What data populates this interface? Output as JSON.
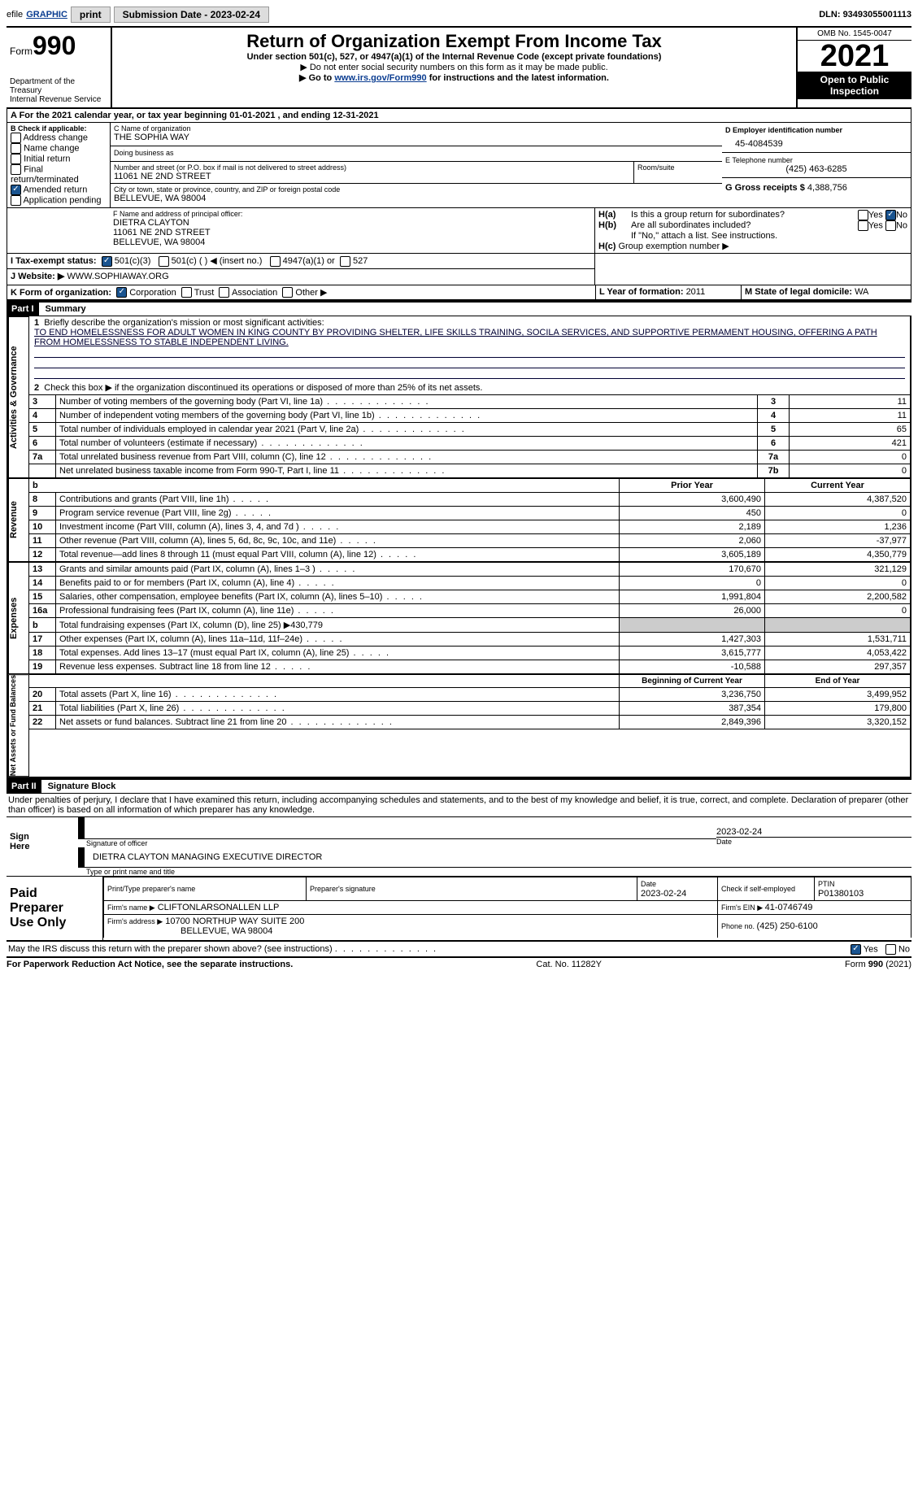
{
  "top": {
    "efile": "efile",
    "graphic": "GRAPHIC",
    "print": "print",
    "subdate_lbl": "Submission Date - ",
    "subdate": "2023-02-24",
    "dln_lbl": "DLN: ",
    "dln": "93493055001113"
  },
  "head": {
    "form": "Form",
    "num": "990",
    "dept": "Department of the Treasury\nInternal Revenue Service",
    "title": "Return of Organization Exempt From Income Tax",
    "sub": "Under section 501(c), 527, or 4947(a)(1) of the Internal Revenue Code (except private foundations)",
    "line2": "▶ Do not enter social security numbers on this form as it may be made public.",
    "line3a": "▶ Go to ",
    "line3_link": "www.irs.gov/Form990",
    "line3b": " for instructions and the latest information.",
    "omb": "OMB No. 1545-0047",
    "year": "2021",
    "inspect1": "Open to Public",
    "inspect2": "Inspection"
  },
  "A": {
    "text_a": "A For the 2021 calendar year, or tax year beginning ",
    "begin": "01-01-2021",
    "text_b": "   , and ending ",
    "end": "12-31-2021"
  },
  "B": {
    "lbl": "B Check if applicable:",
    "addr": "Address change",
    "name": "Name change",
    "init": "Initial return",
    "final": "Final return/terminated",
    "amend": "Amended return",
    "app": "Application pending",
    "checked": {
      "addr": false,
      "name": false,
      "init": false,
      "final": false,
      "amend": true,
      "app": false
    }
  },
  "C": {
    "name_lbl": "C Name of organization",
    "name": "THE SOPHIA WAY",
    "dba_lbl": "Doing business as",
    "dba": "",
    "street_lbl": "Number and street (or P.O. box if mail is not delivered to street address)",
    "room_lbl": "Room/suite",
    "street": "11061 NE 2ND STREET",
    "city_lbl": "City or town, state or province, country, and ZIP or foreign postal code",
    "city": "BELLEVUE, WA  98004"
  },
  "D": {
    "lbl": "D Employer identification number",
    "val": "45-4084539"
  },
  "E": {
    "lbl": "E Telephone number",
    "val": "(425) 463-6285"
  },
  "G": {
    "lbl": "G Gross receipts $ ",
    "val": "4,388,756"
  },
  "F": {
    "lbl": "F  Name and address of principal officer:",
    "name": "DIETRA CLAYTON",
    "street": "11061 NE 2ND STREET",
    "city": "BELLEVUE, WA  98004"
  },
  "H": {
    "a": "Is this a group return for subordinates?",
    "b": "Are all subordinates included?",
    "note": "If \"No,\" attach a list. See instructions.",
    "c": "Group exemption number ▶",
    "yes": "Yes",
    "no": "No",
    "ha": "H(a)",
    "hb": "H(b)",
    "hc": "H(c)"
  },
  "I": {
    "lbl": "I   Tax-exempt status:",
    "c3": "501(c)(3)",
    "c": "501(c) (  ) ◀ (insert no.)",
    "a1": "4947(a)(1) or",
    "s527": "527"
  },
  "J": {
    "lbl": "J   Website: ▶",
    "val": "  WWW.SOPHIAWAY.ORG"
  },
  "K": {
    "lbl": "K Form of organization:",
    "corp": "Corporation",
    "trust": "Trust",
    "assoc": "Association",
    "other": "Other ▶"
  },
  "L": {
    "lbl": "L Year of formation: ",
    "val": "2011"
  },
  "M": {
    "lbl": "M State of legal domicile: ",
    "val": "WA"
  },
  "part1": {
    "bar": "Part I",
    "title": "Summary"
  },
  "summary": {
    "l1a": "Briefly describe the organization's mission or most significant activities:",
    "l1b": "TO END HOMELESSNESS FOR ADULT WOMEN IN KING COUNTY BY PROVIDING SHELTER, LIFE SKILLS TRAINING, SOCILA SERVICES, AND SUPPORTIVE PERMAMENT HOUSING, OFFERING A PATH FROM HOMELESSNESS TO STABLE INDEPENDENT LIVING.",
    "l2": "Check this box ▶        if the organization discontinued its operations or disposed of more than 25% of its net assets.",
    "rows": [
      {
        "n": "3",
        "t": "Number of voting members of the governing body (Part VI, line 1a)",
        "b": "3",
        "v": "11"
      },
      {
        "n": "4",
        "t": "Number of independent voting members of the governing body (Part VI, line 1b)",
        "b": "4",
        "v": "11"
      },
      {
        "n": "5",
        "t": "Total number of individuals employed in calendar year 2021 (Part V, line 2a)",
        "b": "5",
        "v": "65"
      },
      {
        "n": "6",
        "t": "Total number of volunteers (estimate if necessary)",
        "b": "6",
        "v": "421"
      },
      {
        "n": "7a",
        "t": "Total unrelated business revenue from Part VIII, column (C), line 12",
        "b": "7a",
        "v": "0"
      },
      {
        "n": "",
        "t": "Net unrelated business taxable income from Form 990-T, Part I, line 11",
        "b": "7b",
        "v": "0"
      }
    ],
    "col_prior": "Prior Year",
    "col_curr": "Current Year",
    "rev": [
      {
        "n": "8",
        "t": "Contributions and grants (Part VIII, line 1h)",
        "p": "3,600,490",
        "c": "4,387,520"
      },
      {
        "n": "9",
        "t": "Program service revenue (Part VIII, line 2g)",
        "p": "450",
        "c": "0"
      },
      {
        "n": "10",
        "t": "Investment income (Part VIII, column (A), lines 3, 4, and 7d )",
        "p": "2,189",
        "c": "1,236"
      },
      {
        "n": "11",
        "t": "Other revenue (Part VIII, column (A), lines 5, 6d, 8c, 9c, 10c, and 11e)",
        "p": "2,060",
        "c": "-37,977"
      },
      {
        "n": "12",
        "t": "Total revenue—add lines 8 through 11 (must equal Part VIII, column (A), line 12)",
        "p": "3,605,189",
        "c": "4,350,779"
      }
    ],
    "exp": [
      {
        "n": "13",
        "t": "Grants and similar amounts paid (Part IX, column (A), lines 1–3 )",
        "p": "170,670",
        "c": "321,129"
      },
      {
        "n": "14",
        "t": "Benefits paid to or for members (Part IX, column (A), line 4)",
        "p": "0",
        "c": "0"
      },
      {
        "n": "15",
        "t": "Salaries, other compensation, employee benefits (Part IX, column (A), lines 5–10)",
        "p": "1,991,804",
        "c": "2,200,582"
      },
      {
        "n": "16a",
        "t": "Professional fundraising fees (Part IX, column (A), line 11e)",
        "p": "26,000",
        "c": "0"
      },
      {
        "n": "b",
        "t": "Total fundraising expenses (Part IX, column (D), line 25) ▶430,779",
        "p": "",
        "c": "",
        "shaded": true
      },
      {
        "n": "17",
        "t": "Other expenses (Part IX, column (A), lines 11a–11d, 11f–24e)",
        "p": "1,427,303",
        "c": "1,531,711"
      },
      {
        "n": "18",
        "t": "Total expenses. Add lines 13–17 (must equal Part IX, column (A), line 25)",
        "p": "3,615,777",
        "c": "4,053,422"
      },
      {
        "n": "19",
        "t": "Revenue less expenses. Subtract line 18 from line 12",
        "p": "-10,588",
        "c": "297,357"
      }
    ],
    "col_beg": "Beginning of Current Year",
    "col_end": "End of Year",
    "net": [
      {
        "n": "20",
        "t": "Total assets (Part X, line 16)",
        "p": "3,236,750",
        "c": "3,499,952"
      },
      {
        "n": "21",
        "t": "Total liabilities (Part X, line 26)",
        "p": "387,354",
        "c": "179,800"
      },
      {
        "n": "22",
        "t": "Net assets or fund balances. Subtract line 21 from line 20",
        "p": "2,849,396",
        "c": "3,320,152"
      }
    ],
    "tab_act": "Activities & Governance",
    "tab_rev": "Revenue",
    "tab_exp": "Expenses",
    "tab_net": "Net Assets or Fund Balances"
  },
  "part2": {
    "bar": "Part II",
    "title": "Signature Block"
  },
  "sig": {
    "decl": "Under penalties of perjury, I declare that I have examined this return, including accompanying schedules and statements, and to the best of my knowledge and belief, it is true, correct, and complete. Declaration of preparer (other than officer) is based on all information of which preparer has any knowledge.",
    "sign_here": "Sign Here",
    "sig_officer": "Signature of officer",
    "date": "Date",
    "date_val": "2023-02-24",
    "name_title": "DIETRA CLAYTON  MANAGING EXECUTIVE DIRECTOR",
    "type_name": "Type or print name and title",
    "paid": "Paid Preparer Use Only",
    "print_prep": "Print/Type preparer's name",
    "prep_sig": "Preparer's signature",
    "pdate": "Date",
    "pdate_val": "2023-02-24",
    "check_if": "Check        if self-employed",
    "ptin_lbl": "PTIN",
    "ptin": "P01380103",
    "firm_name_lbl": "Firm's name     ▶",
    "firm_name": " CLIFTONLARSONALLEN LLP",
    "firm_ein_lbl": "Firm's EIN ▶ ",
    "firm_ein": "41-0746749",
    "firm_addr_lbl": "Firm's address ▶",
    "firm_addr": " 10700 NORTHUP WAY SUITE 200",
    "firm_city": "BELLEVUE, WA  98004",
    "phone_lbl": "Phone no. ",
    "phone": "(425) 250-6100",
    "may_irs": "May the IRS discuss this return with the preparer shown above? (see instructions)",
    "yes": "Yes",
    "no": "No"
  },
  "foot": {
    "pra": "For Paperwork Reduction Act Notice, see the separate instructions.",
    "cat": "Cat. No. 11282Y",
    "form": "Form 990 (2021)"
  },
  "colors": {
    "link": "#0b3d91",
    "check": "#1a5490"
  }
}
